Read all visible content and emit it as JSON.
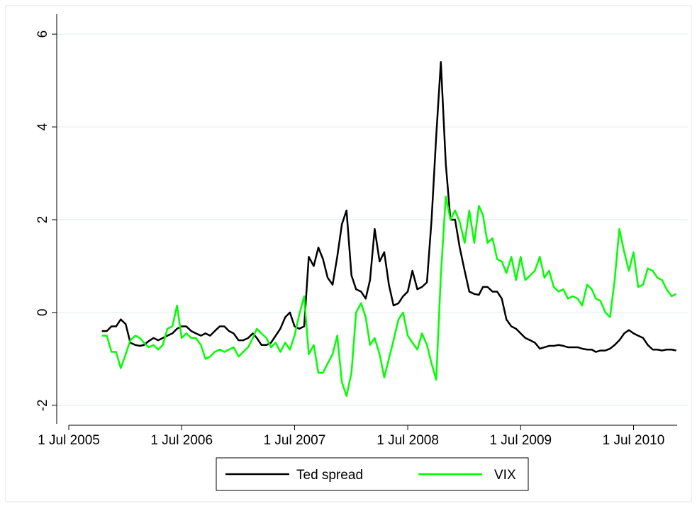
{
  "chart_data": {
    "type": "line",
    "x": [
      "2005-10-16",
      "2005-11-01",
      "2005-11-16",
      "2005-12-01",
      "2005-12-16",
      "2006-01-01",
      "2006-01-16",
      "2006-02-01",
      "2006-02-16",
      "2006-03-01",
      "2006-03-16",
      "2006-04-01",
      "2006-04-16",
      "2006-05-01",
      "2006-05-16",
      "2006-06-01",
      "2006-06-16",
      "2006-07-01",
      "2006-07-16",
      "2006-08-01",
      "2006-08-16",
      "2006-09-01",
      "2006-09-16",
      "2006-10-01",
      "2006-10-16",
      "2006-11-01",
      "2006-11-16",
      "2006-12-01",
      "2006-12-16",
      "2007-01-01",
      "2007-01-16",
      "2007-02-01",
      "2007-02-16",
      "2007-03-01",
      "2007-03-16",
      "2007-04-01",
      "2007-04-16",
      "2007-05-01",
      "2007-05-16",
      "2007-06-01",
      "2007-06-16",
      "2007-07-01",
      "2007-07-16",
      "2007-08-01",
      "2007-08-16",
      "2007-09-01",
      "2007-09-16",
      "2007-10-01",
      "2007-10-16",
      "2007-11-01",
      "2007-11-16",
      "2007-12-01",
      "2007-12-16",
      "2008-01-01",
      "2008-01-16",
      "2008-02-01",
      "2008-02-16",
      "2008-03-01",
      "2008-03-16",
      "2008-04-01",
      "2008-04-16",
      "2008-05-01",
      "2008-05-16",
      "2008-06-01",
      "2008-06-16",
      "2008-07-01",
      "2008-07-16",
      "2008-08-01",
      "2008-08-16",
      "2008-09-01",
      "2008-09-16",
      "2008-10-01",
      "2008-10-16",
      "2008-11-01",
      "2008-11-16",
      "2008-12-01",
      "2008-12-16",
      "2009-01-01",
      "2009-01-16",
      "2009-02-01",
      "2009-02-16",
      "2009-03-01",
      "2009-03-16",
      "2009-04-01",
      "2009-04-16",
      "2009-05-01",
      "2009-05-16",
      "2009-06-01",
      "2009-06-16",
      "2009-07-01",
      "2009-07-16",
      "2009-08-01",
      "2009-08-16",
      "2009-09-01",
      "2009-09-16",
      "2009-10-01",
      "2009-10-16",
      "2009-11-01",
      "2009-11-16",
      "2009-12-01",
      "2009-12-16",
      "2010-01-01",
      "2010-01-16",
      "2010-02-01",
      "2010-02-16",
      "2010-03-01",
      "2010-03-16",
      "2010-04-01",
      "2010-04-16",
      "2010-05-01",
      "2010-05-16",
      "2010-06-01",
      "2010-06-16",
      "2010-07-01",
      "2010-07-16",
      "2010-08-01",
      "2010-08-16",
      "2010-09-01",
      "2010-09-16",
      "2010-10-01",
      "2010-10-16",
      "2010-11-01",
      "2010-11-16"
    ],
    "series": [
      {
        "name": "Ted spread",
        "color": "#000000",
        "values": [
          -0.4,
          -0.4,
          -0.3,
          -0.3,
          -0.15,
          -0.25,
          -0.65,
          -0.7,
          -0.72,
          -0.7,
          -0.62,
          -0.55,
          -0.6,
          -0.55,
          -0.5,
          -0.45,
          -0.35,
          -0.3,
          -0.3,
          -0.4,
          -0.45,
          -0.5,
          -0.45,
          -0.5,
          -0.4,
          -0.3,
          -0.3,
          -0.4,
          -0.45,
          -0.6,
          -0.6,
          -0.55,
          -0.45,
          -0.55,
          -0.7,
          -0.7,
          -0.65,
          -0.5,
          -0.35,
          -0.1,
          0.0,
          -0.3,
          -0.35,
          -0.3,
          1.2,
          1.0,
          1.4,
          1.15,
          0.75,
          0.6,
          1.2,
          1.9,
          2.2,
          0.8,
          0.5,
          0.45,
          0.3,
          0.7,
          1.8,
          1.1,
          1.3,
          0.6,
          0.15,
          0.2,
          0.35,
          0.45,
          0.9,
          0.5,
          0.55,
          0.65,
          2.0,
          3.8,
          5.4,
          3.2,
          2.0,
          2.0,
          1.4,
          0.9,
          0.45,
          0.4,
          0.38,
          0.55,
          0.55,
          0.45,
          0.45,
          0.3,
          -0.15,
          -0.3,
          -0.35,
          -0.45,
          -0.55,
          -0.6,
          -0.65,
          -0.78,
          -0.75,
          -0.72,
          -0.72,
          -0.7,
          -0.72,
          -0.75,
          -0.75,
          -0.75,
          -0.78,
          -0.8,
          -0.8,
          -0.85,
          -0.82,
          -0.82,
          -0.78,
          -0.7,
          -0.6,
          -0.45,
          -0.38,
          -0.45,
          -0.5,
          -0.55,
          -0.7,
          -0.8,
          -0.8,
          -0.82,
          -0.8,
          -0.8,
          -0.82
        ]
      },
      {
        "name": "VIX",
        "color": "#00ff00",
        "values": [
          -0.5,
          -0.5,
          -0.85,
          -0.85,
          -1.2,
          -0.9,
          -0.6,
          -0.5,
          -0.55,
          -0.65,
          -0.75,
          -0.7,
          -0.8,
          -0.7,
          -0.35,
          -0.3,
          0.15,
          -0.55,
          -0.45,
          -0.55,
          -0.55,
          -0.7,
          -1.0,
          -0.95,
          -0.85,
          -0.8,
          -0.85,
          -0.8,
          -0.75,
          -0.95,
          -0.85,
          -0.75,
          -0.55,
          -0.35,
          -0.45,
          -0.55,
          -0.75,
          -0.65,
          -0.85,
          -0.65,
          -0.8,
          -0.5,
          -0.05,
          0.35,
          -0.9,
          -0.7,
          -1.3,
          -1.3,
          -1.1,
          -0.9,
          -0.5,
          -1.5,
          -1.8,
          -1.3,
          0.0,
          0.2,
          -0.1,
          -0.7,
          -0.55,
          -0.9,
          -1.4,
          -1.0,
          -0.6,
          -0.15,
          0.0,
          -0.5,
          -0.65,
          -0.8,
          -0.45,
          -0.7,
          -1.1,
          -1.45,
          0.8,
          2.5,
          2.0,
          2.2,
          1.95,
          1.5,
          2.2,
          1.5,
          2.3,
          2.1,
          1.5,
          1.6,
          1.15,
          1.1,
          0.85,
          1.2,
          0.7,
          1.2,
          0.7,
          0.8,
          0.9,
          1.2,
          0.75,
          0.9,
          0.55,
          0.45,
          0.5,
          0.3,
          0.35,
          0.3,
          0.15,
          0.6,
          0.5,
          0.3,
          0.25,
          0.0,
          -0.1,
          0.7,
          1.8,
          1.3,
          0.9,
          1.3,
          0.55,
          0.6,
          0.95,
          0.9,
          0.75,
          0.7,
          0.5,
          0.35,
          0.4
        ]
      }
    ],
    "xlim": [
      "2005-07-01",
      "2010-11-19"
    ],
    "xticks": [
      {
        "value": "2005-07-01",
        "label": "1 Jul 2005"
      },
      {
        "value": "2006-07-01",
        "label": "1 Jul 2006"
      },
      {
        "value": "2007-07-01",
        "label": "1 Jul 2007"
      },
      {
        "value": "2008-07-01",
        "label": "1 Jul 2008"
      },
      {
        "value": "2009-07-01",
        "label": "1 Jul 2009"
      },
      {
        "value": "2010-07-01",
        "label": "1 Jul 2010"
      }
    ],
    "ylim": [
      -2.4,
      6.43
    ],
    "yticks": [
      -2,
      0,
      2,
      4,
      6
    ],
    "grid": true,
    "legend": "bottom"
  }
}
